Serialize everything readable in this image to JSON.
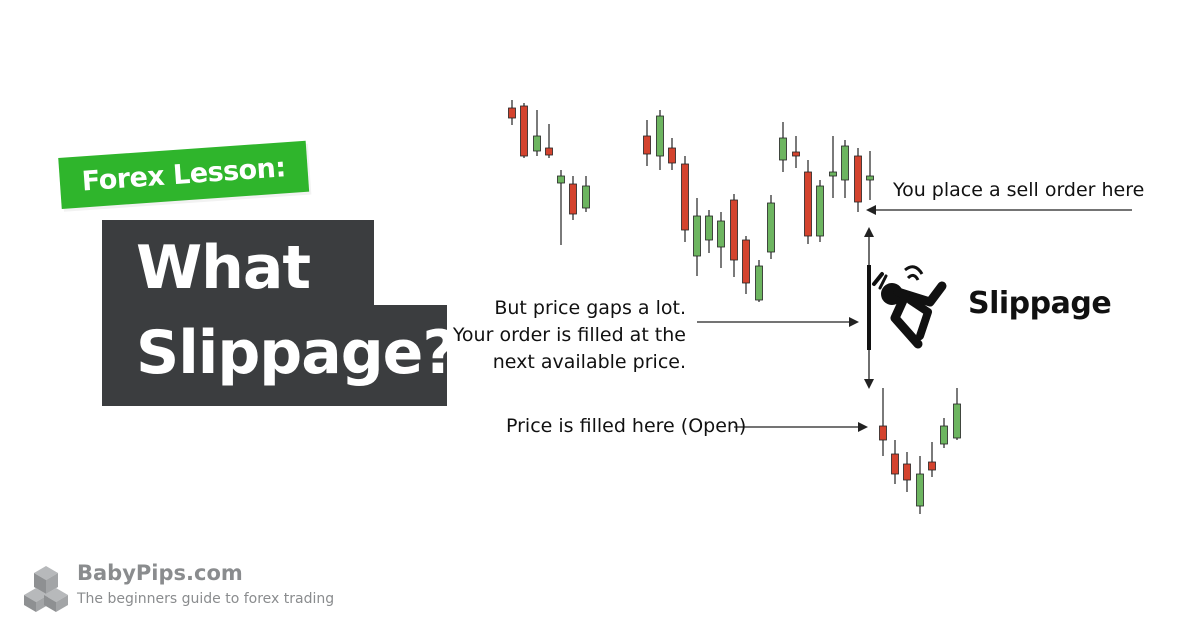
{
  "header": {
    "tag": "Forex Lesson:",
    "title_line1": "What is",
    "title_line2": "Slippage?"
  },
  "annotations": {
    "sell_order": "You place a sell order here",
    "gap_line1": "But price gaps a lot.",
    "gap_line2": "Your order is filled at the",
    "gap_line3": "next available price.",
    "filled": "Price is filled here (Open)",
    "slippage": "Slippage"
  },
  "brand": {
    "name": "BabyPips.com",
    "tagline": "The beginners guide to forex trading"
  },
  "colors": {
    "accent_green": "#2fb52c",
    "dark_panel": "#3b3d3f",
    "candle_up": "#6db560",
    "candle_down": "#d4432e"
  },
  "icons": [
    "falling-person-icon",
    "babypips-cube-logo-icon"
  ]
}
